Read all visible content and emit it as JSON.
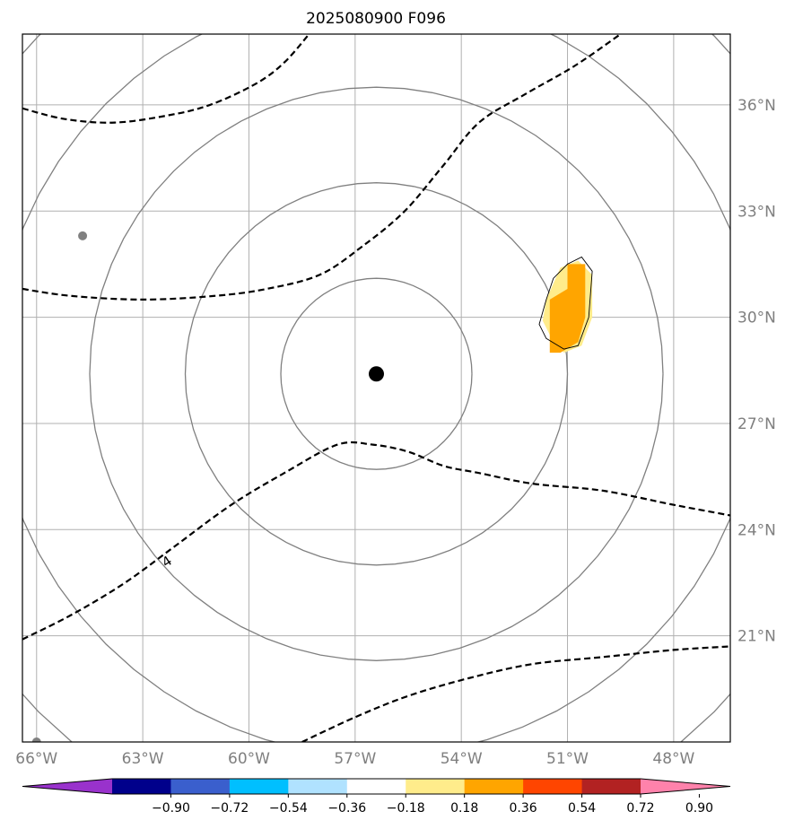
{
  "chart_data": {
    "type": "map-contour",
    "title": "2025080900 F096",
    "lon_ticks": [
      {
        "value": -66,
        "label": "66°W"
      },
      {
        "value": -63,
        "label": "63°W"
      },
      {
        "value": -60,
        "label": "60°W"
      },
      {
        "value": -57,
        "label": "57°W"
      },
      {
        "value": -54,
        "label": "54°W"
      },
      {
        "value": -51,
        "label": "51°W"
      },
      {
        "value": -48,
        "label": "48°W"
      }
    ],
    "lat_ticks": [
      {
        "value": 21,
        "label": "21°N"
      },
      {
        "value": 24,
        "label": "24°N"
      },
      {
        "value": 27,
        "label": "27°N"
      },
      {
        "value": 30,
        "label": "30°N"
      },
      {
        "value": 33,
        "label": "33°N"
      },
      {
        "value": 36,
        "label": "36°N"
      }
    ],
    "lon_range": [
      -66.4,
      -46.4
    ],
    "lat_range": [
      18.0,
      38.0
    ],
    "center": {
      "lon": -56.4,
      "lat": 28.4
    },
    "range_ring_radii_deg": [
      2.7,
      5.4,
      8.1,
      10.8,
      13.5
    ],
    "colorbar": {
      "colors": [
        "#9932cc",
        "#00008b",
        "#3a5fcd",
        "#00bfff",
        "#b0e2ff",
        "#ffffff",
        "#ffec8b",
        "#ffa500",
        "#ff4500",
        "#b22222",
        "#ff82ab"
      ],
      "tick_labels": [
        "−0.90",
        "−0.72",
        "−0.54",
        "−0.36",
        "−0.18",
        "0.18",
        "0.36",
        "0.54",
        "0.72",
        "0.90"
      ],
      "extend": "both"
    },
    "contour_label": "4",
    "dashed_contours": [
      [
        [
          -66.4,
          35.9
        ],
        [
          -65.2,
          35.6
        ],
        [
          -63.8,
          35.5
        ],
        [
          -62.3,
          35.7
        ],
        [
          -61.1,
          36.0
        ],
        [
          -59.8,
          36.6
        ],
        [
          -59.0,
          37.2
        ],
        [
          -58.3,
          38.0
        ]
      ],
      [
        [
          -66.4,
          30.8
        ],
        [
          -65.0,
          30.6
        ],
        [
          -63.0,
          30.5
        ],
        [
          -61.0,
          30.6
        ],
        [
          -59.5,
          30.8
        ],
        [
          -58.0,
          31.2
        ],
        [
          -56.8,
          32.0
        ],
        [
          -55.6,
          33.0
        ],
        [
          -54.5,
          34.3
        ],
        [
          -53.5,
          35.5
        ],
        [
          -52.2,
          36.3
        ],
        [
          -50.8,
          37.1
        ],
        [
          -49.5,
          38.0
        ]
      ],
      [
        [
          -66.4,
          20.9
        ],
        [
          -65.0,
          21.6
        ],
        [
          -63.5,
          22.5
        ],
        [
          -62.0,
          23.6
        ],
        [
          -60.5,
          24.7
        ],
        [
          -59.0,
          25.6
        ],
        [
          -57.5,
          26.4
        ],
        [
          -56.5,
          26.4
        ],
        [
          -55.5,
          26.2
        ],
        [
          -54.5,
          25.8
        ],
        [
          -53.5,
          25.6
        ],
        [
          -52.0,
          25.3
        ],
        [
          -50.0,
          25.1
        ],
        [
          -48.0,
          24.7
        ],
        [
          -46.4,
          24.4
        ]
      ],
      [
        [
          -58.5,
          18.0
        ],
        [
          -57.0,
          18.7
        ],
        [
          -55.5,
          19.3
        ],
        [
          -53.8,
          19.8
        ],
        [
          -52.0,
          20.2
        ],
        [
          -50.0,
          20.4
        ],
        [
          -48.0,
          20.6
        ],
        [
          -46.4,
          20.7
        ]
      ]
    ],
    "anomaly_patch": {
      "outer": [
        [
          -51.5,
          29.5
        ],
        [
          -51.1,
          29.0
        ],
        [
          -50.6,
          29.2
        ],
        [
          -50.3,
          30.0
        ],
        [
          -50.3,
          31.2
        ],
        [
          -50.7,
          31.6
        ],
        [
          -51.2,
          31.4
        ],
        [
          -51.6,
          30.5
        ],
        [
          -51.7,
          29.9
        ]
      ],
      "inner": [
        [
          -51.2,
          29.0
        ],
        [
          -50.7,
          29.3
        ],
        [
          -50.5,
          30.0
        ],
        [
          -50.5,
          31.5
        ],
        [
          -51.0,
          31.5
        ],
        [
          -51.0,
          30.8
        ],
        [
          -51.5,
          30.5
        ],
        [
          -51.5,
          29.0
        ]
      ],
      "outline": [
        [
          -51.6,
          29.4
        ],
        [
          -51.1,
          29.1
        ],
        [
          -50.7,
          29.2
        ],
        [
          -50.4,
          30.0
        ],
        [
          -50.3,
          31.3
        ],
        [
          -50.6,
          31.7
        ],
        [
          -51.0,
          31.5
        ],
        [
          -51.4,
          31.1
        ],
        [
          -51.6,
          30.5
        ],
        [
          -51.8,
          29.8
        ]
      ]
    },
    "gray_points": [
      {
        "lon": -64.7,
        "lat": 32.3
      },
      {
        "lon": -66.0,
        "lat": 18.0
      }
    ]
  }
}
